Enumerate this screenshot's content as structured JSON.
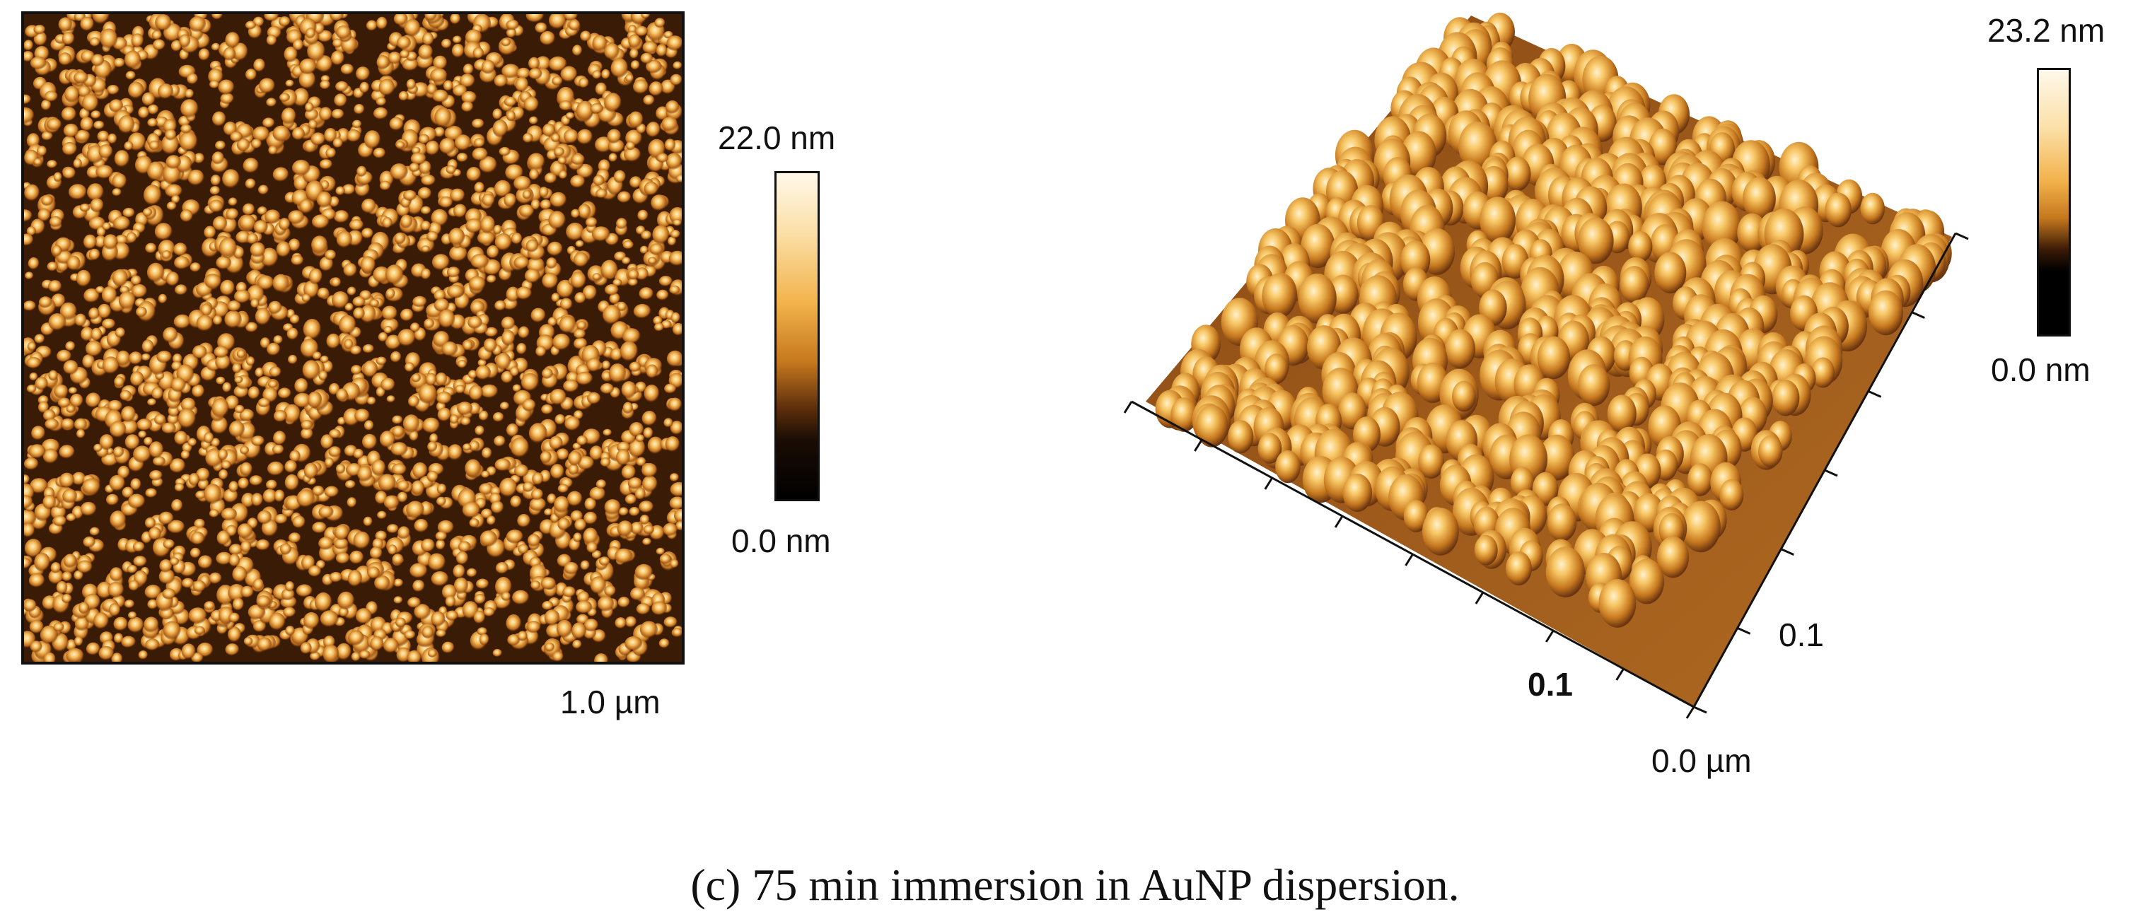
{
  "left_panel": {
    "colorbar_max": "22.0 nm",
    "colorbar_min": "0.0 nm",
    "scale_label": "1.0 µm"
  },
  "right_panel": {
    "colorbar_max": "23.2 nm",
    "colorbar_min": "0.0 nm",
    "axis_label_right": "0.1",
    "axis_label_front": "0.1",
    "origin_label": "0.0 µm"
  },
  "caption": "(c) 75 min immersion in AuNP dispersion.",
  "colors": {
    "peak": "#f7c160",
    "mid": "#b86a1c",
    "base": "#3a1c06"
  }
}
